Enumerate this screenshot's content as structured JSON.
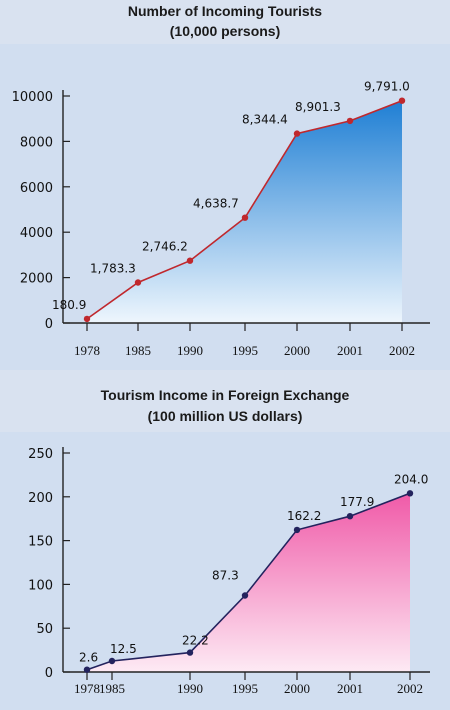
{
  "chart_data": [
    {
      "type": "area",
      "title": "Number of Incoming Tourists",
      "subtitle": "(10,000 persons)",
      "categories": [
        "1978",
        "1985",
        "1990",
        "1995",
        "2000",
        "2001",
        "2002"
      ],
      "values": [
        180.9,
        1783.3,
        2746.2,
        4638.7,
        8344.4,
        8901.3,
        9791.0
      ],
      "data_labels": [
        "180.9",
        "1,783.3",
        "2,746.2",
        "4,638.7",
        "8,344.4",
        "8,901.3",
        "9,791.0"
      ],
      "yticks": [
        "0",
        "2000",
        "4000",
        "6000",
        "8000",
        "10000"
      ],
      "ylim": [
        0,
        10000
      ],
      "line_color": "#c0282d",
      "marker_color": "#c0282d",
      "fill_top_color": "#1f7fd4",
      "fill_bottom_color": "#eef6fd",
      "grid": false
    },
    {
      "type": "area",
      "title": "Tourism Income in Foreign Exchange",
      "subtitle": "(100 million US dollars)",
      "categories": [
        "1978",
        "1985",
        "1990",
        "1995",
        "2000",
        "2001",
        "2002"
      ],
      "values": [
        2.6,
        12.5,
        22.2,
        87.3,
        162.2,
        177.9,
        204.0
      ],
      "data_labels": [
        "2.6",
        "12.5",
        "22.2",
        "87.3",
        "162.2",
        "177.9",
        "204.0"
      ],
      "yticks": [
        "0",
        "50",
        "100",
        "150",
        "200",
        "250"
      ],
      "ylim": [
        0,
        250
      ],
      "line_color": "#23235e",
      "marker_color": "#23235e",
      "fill_top_color": "#f05aa8",
      "fill_bottom_color": "#fdeaf4",
      "grid": false
    }
  ]
}
